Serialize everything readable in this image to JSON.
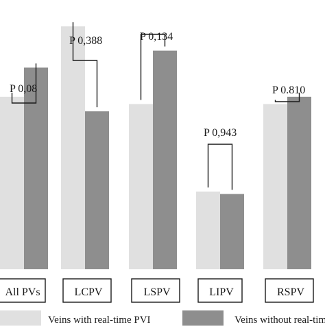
{
  "chart_data": {
    "type": "bar",
    "categories": [
      "All PVs",
      "LCPV",
      "LSPV",
      "LIPV",
      "RSPV"
    ],
    "series": [
      {
        "name": "Veins with real-time PVI",
        "values": [
          71,
          100,
          68,
          32,
          68
        ],
        "color": "#e0e0e0"
      },
      {
        "name": "Veins without real-time PVI",
        "values": [
          83,
          65,
          90,
          31,
          71
        ],
        "color": "#8e8e8e"
      }
    ],
    "annotations": [
      "P 0,08",
      "P 0,388",
      "P 0,134",
      "P 0,943",
      "P 0.810"
    ],
    "ylim": [
      0,
      108
    ],
    "legend_position": "bottom",
    "grid": false
  }
}
